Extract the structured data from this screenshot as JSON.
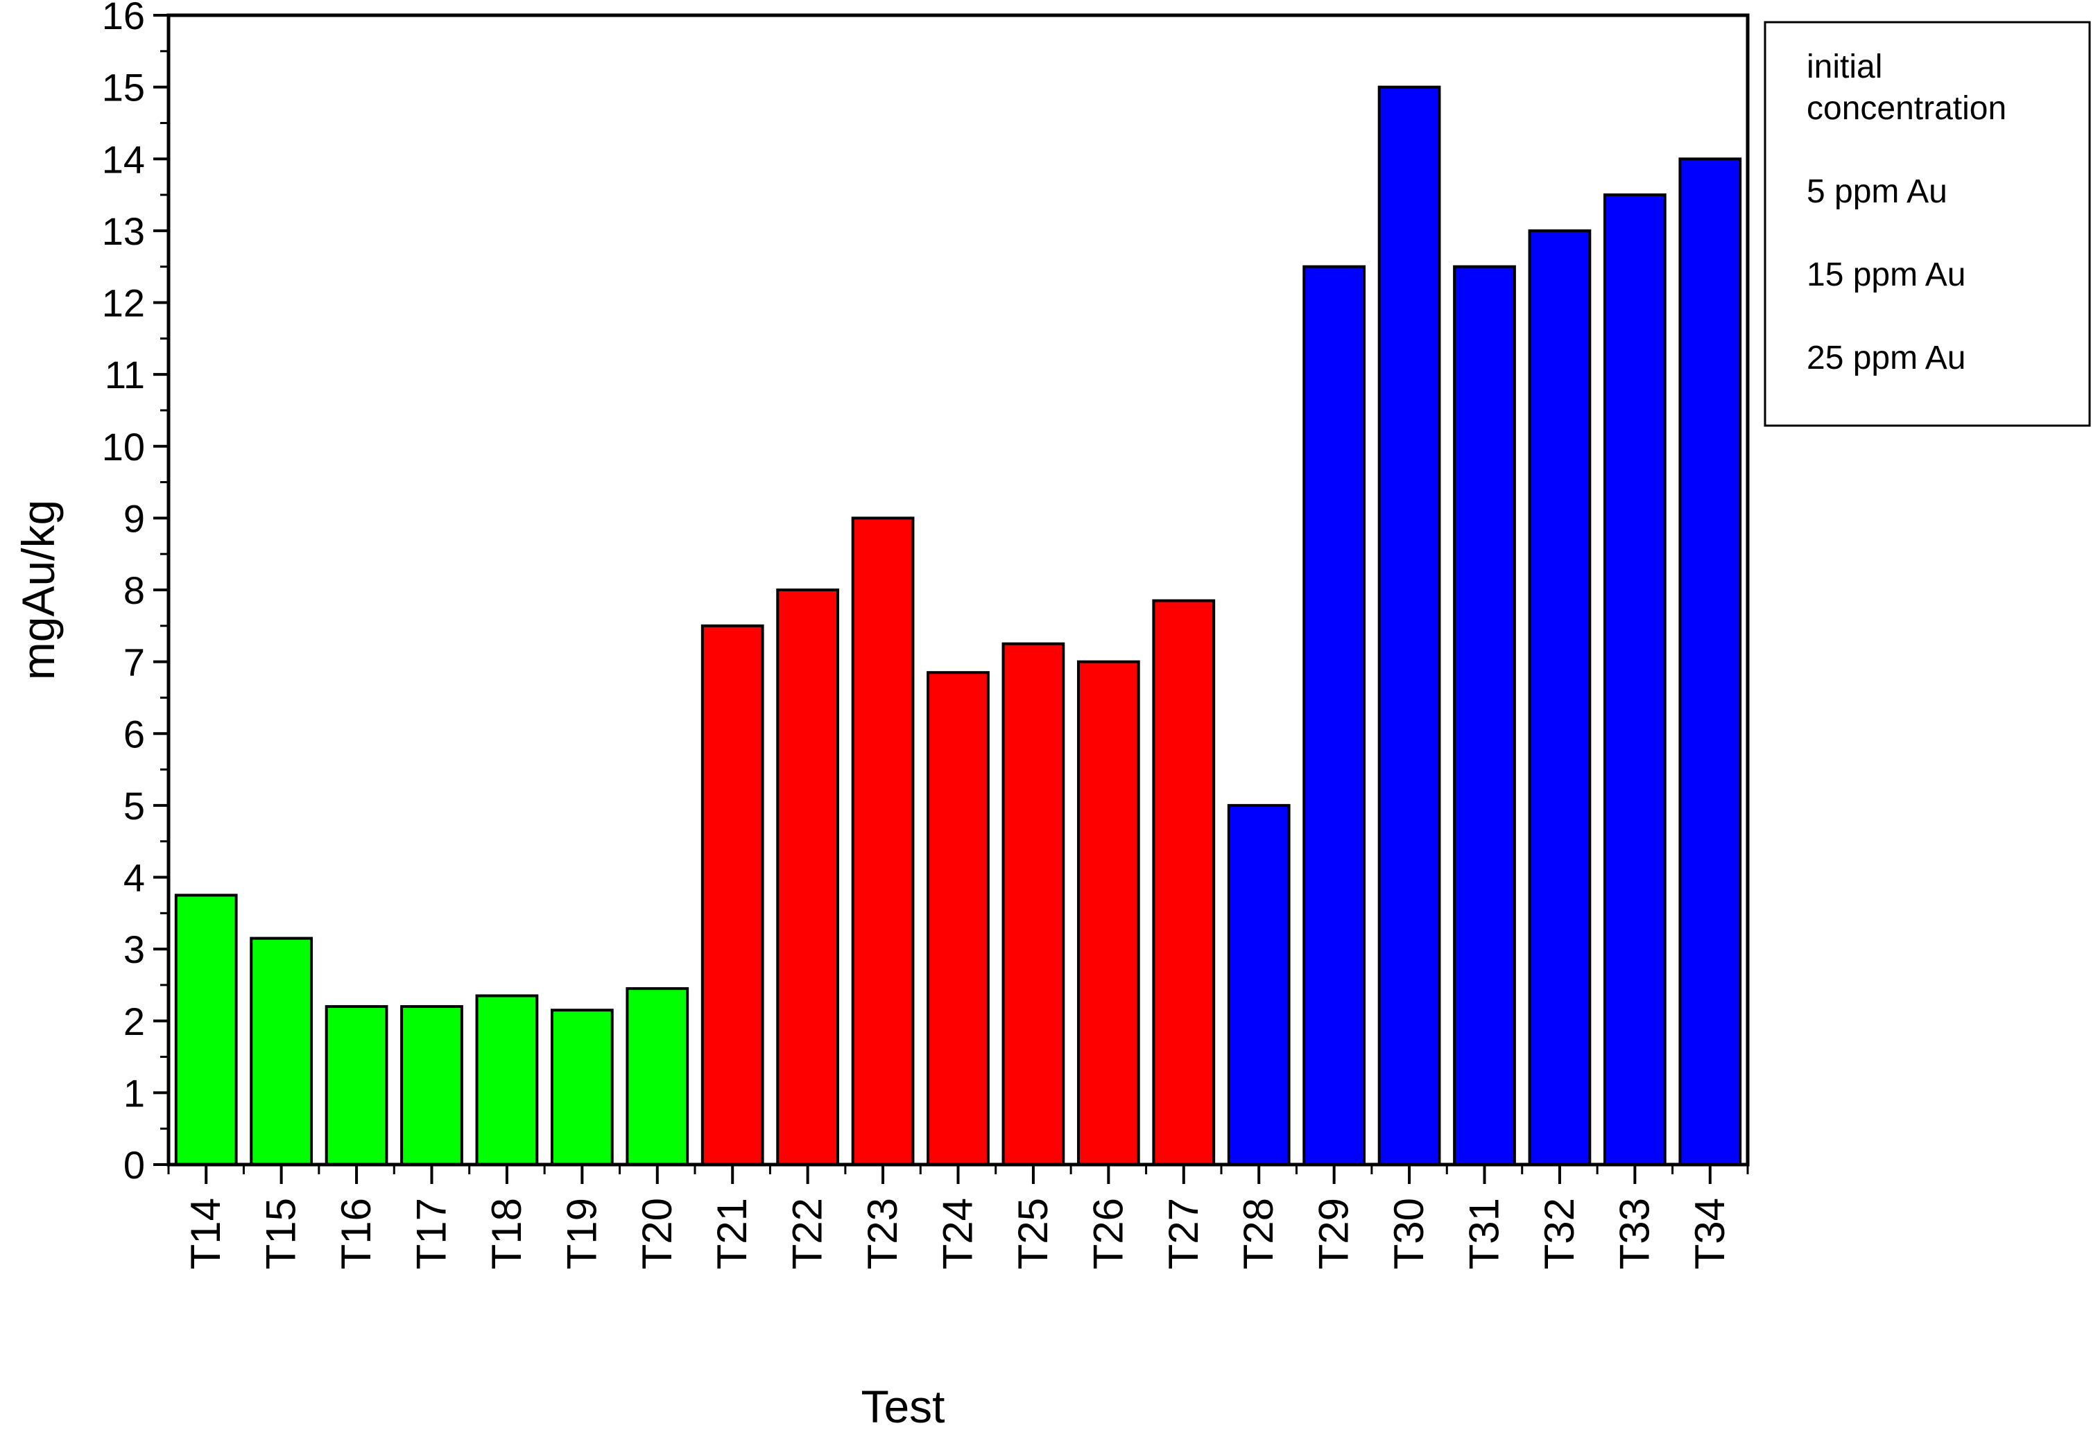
{
  "chart_data": {
    "type": "bar",
    "title": "",
    "xlabel": "Test",
    "ylabel": "mgAu/kg",
    "ylim": [
      0,
      16
    ],
    "yticks": [
      0,
      1,
      2,
      3,
      4,
      5,
      6,
      7,
      8,
      9,
      10,
      11,
      12,
      13,
      14,
      15,
      16
    ],
    "categories": [
      "T14",
      "T15",
      "T16",
      "T17",
      "T18",
      "T19",
      "T20",
      "T21",
      "T22",
      "T23",
      "T24",
      "T25",
      "T26",
      "T27",
      "T28",
      "T29",
      "T30",
      "T31",
      "T32",
      "T33",
      "T34"
    ],
    "values": [
      3.75,
      3.15,
      2.2,
      2.2,
      2.35,
      2.15,
      2.45,
      7.5,
      8.0,
      9.0,
      6.85,
      7.25,
      7.0,
      7.85,
      5.0,
      12.5,
      15.0,
      12.5,
      13.0,
      13.5,
      14.0
    ],
    "bar_groups": [
      0,
      0,
      0,
      0,
      0,
      0,
      0,
      1,
      1,
      1,
      1,
      1,
      1,
      1,
      2,
      2,
      2,
      2,
      2,
      2,
      2
    ],
    "group_colors": [
      "#00ff00",
      "#ff0000",
      "#0000ff"
    ],
    "legend": {
      "placement": "right",
      "title_lines": [
        "initial",
        "concentration"
      ],
      "entries": [
        {
          "label": "5 ppm Au",
          "color": "#22b24c"
        },
        {
          "label": "15 ppm Au",
          "color": "#ff0000"
        },
        {
          "label": "25 ppm Au",
          "color": "#1874cd"
        }
      ]
    },
    "grid": false
  }
}
